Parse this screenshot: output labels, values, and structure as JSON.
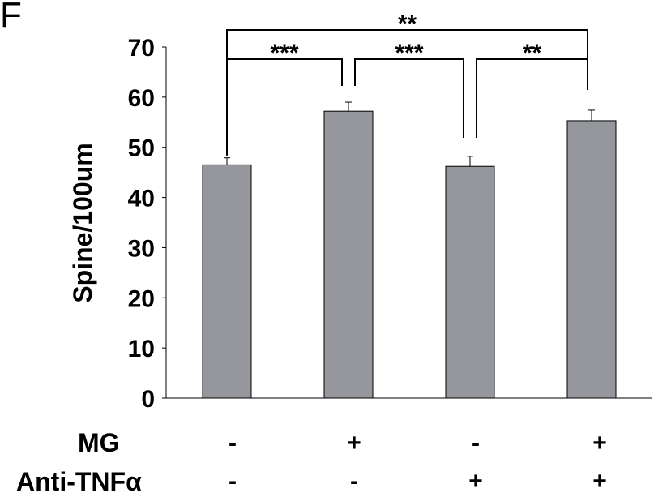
{
  "panel_label": "F",
  "chart_data": {
    "type": "bar",
    "title": "",
    "xlabel": "",
    "ylabel": "Spine/100um",
    "ylim": [
      0,
      70
    ],
    "yticks": [
      "0",
      "10",
      "20",
      "30",
      "40",
      "50",
      "60",
      "70"
    ],
    "bar_color": "#95979c",
    "values": [
      46.5,
      57.2,
      46.2,
      55.3
    ],
    "errors": [
      1.4,
      1.8,
      2.0,
      2.1
    ],
    "conditions": {
      "rows": [
        {
          "label": "MG",
          "values": [
            "-",
            "+",
            "-",
            "+"
          ]
        },
        {
          "label": "Anti-TNFα",
          "values": [
            "-",
            "-",
            "+",
            "+"
          ]
        }
      ]
    },
    "significance": [
      {
        "from": 0,
        "to": 1,
        "label": "***"
      },
      {
        "from": 1,
        "to": 2,
        "label": "***"
      },
      {
        "from": 2,
        "to": 3,
        "label": "**"
      },
      {
        "from": 0,
        "to": 3,
        "label": "**"
      }
    ]
  }
}
